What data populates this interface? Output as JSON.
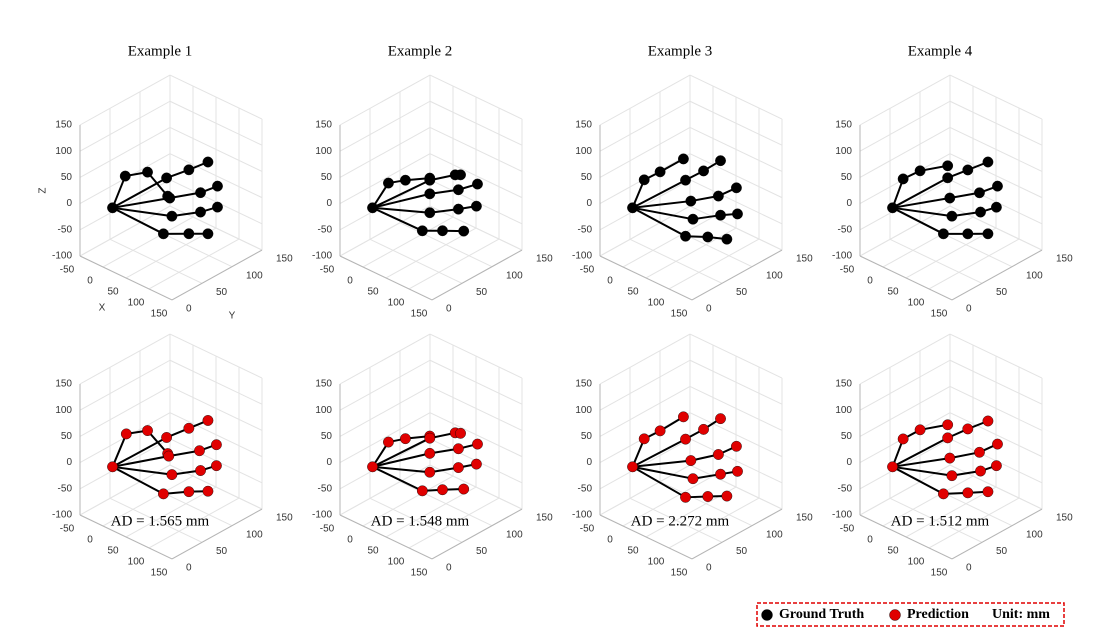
{
  "chart_data": [
    {
      "type": "scatter3d",
      "title": "Example 1",
      "xlabel": "X",
      "ylabel": "Y",
      "zlabel": "Z",
      "xlim": [
        -50,
        150
      ],
      "ylim": [
        0,
        150
      ],
      "zlim": [
        -100,
        150
      ],
      "xticks": [
        -50,
        0,
        50,
        100,
        150
      ],
      "yticks": [
        0,
        50,
        100,
        150
      ],
      "zticks": [
        -100,
        -50,
        0,
        50,
        100,
        150
      ],
      "series": [
        {
          "color": "#000000",
          "x": [
            9,
            21,
            42,
            61,
            60,
            81,
            99,
            63,
            92,
            108,
            65,
            92,
            108,
            57,
            81,
            99
          ],
          "y": [
            9,
            21,
            42,
            61,
            60,
            81,
            99,
            63,
            92,
            108,
            65,
            92,
            108,
            57,
            81,
            99
          ],
          "z": [
            11,
            69,
            72,
            22,
            57,
            68,
            79,
            18,
            22,
            31,
            -17,
            -15,
            -9,
            -49,
            -54,
            -58
          ]
        }
      ]
    },
    {
      "type": "scatter3d",
      "title": "Example 2",
      "xlim": [
        -50,
        150
      ],
      "ylim": [
        0,
        150
      ],
      "zlim": [
        -100,
        150
      ],
      "xticks": [
        -50,
        0,
        50,
        100,
        150
      ],
      "yticks": [
        0,
        50,
        100,
        150
      ],
      "zticks": [
        -100,
        -50,
        0,
        50,
        100,
        150
      ],
      "series": [
        {
          "color": "#000000",
          "x": [
            9,
            24,
            40,
            63,
            63,
            87,
            92,
            63,
            90,
            108,
            63,
            90,
            107,
            56,
            75,
            95
          ],
          "y": [
            9,
            24,
            40,
            63,
            63,
            87,
            92,
            63,
            90,
            108,
            63,
            90,
            107,
            56,
            75,
            95
          ],
          "z": [
            11,
            55,
            57,
            56,
            52,
            57,
            56,
            26,
            28,
            35,
            -10,
            -9,
            -7,
            -43,
            -47,
            -52
          ]
        }
      ]
    },
    {
      "type": "scatter3d",
      "title": "Example 3",
      "xlim": [
        -50,
        150
      ],
      "ylim": [
        0,
        150
      ],
      "zlim": [
        -100,
        150
      ],
      "xticks": [
        -50,
        0,
        50,
        100,
        150
      ],
      "yticks": [
        0,
        50,
        100,
        150
      ],
      "zticks": [
        -100,
        -50,
        0,
        50,
        100,
        150
      ],
      "series": [
        {
          "color": "#000000",
          "x": [
            9,
            20,
            35,
            57,
            59,
            76,
            92,
            64,
            90,
            107,
            66,
            92,
            108,
            59,
            80,
            98
          ],
          "y": [
            9,
            20,
            35,
            57,
            59,
            76,
            92,
            64,
            90,
            107,
            66,
            92,
            108,
            59,
            80,
            98
          ],
          "z": [
            11,
            62,
            74,
            94,
            53,
            67,
            83,
            12,
            16,
            28,
            -23,
            -21,
            -22,
            -54,
            -60,
            -68
          ]
        }
      ]
    },
    {
      "type": "scatter3d",
      "title": "Example 4",
      "xlim": [
        -50,
        150
      ],
      "ylim": [
        0,
        150
      ],
      "zlim": [
        -100,
        150
      ],
      "xticks": [
        -50,
        0,
        50,
        100,
        150
      ],
      "yticks": [
        0,
        50,
        100,
        150
      ],
      "zticks": [
        -100,
        -50,
        0,
        50,
        100,
        150
      ],
      "series": [
        {
          "color": "#000000",
          "x": [
            9,
            19,
            35,
            61,
            61,
            80,
            99,
            63,
            91,
            108,
            65,
            92,
            107,
            57,
            80,
            99
          ],
          "y": [
            9,
            19,
            35,
            61,
            61,
            80,
            99,
            63,
            91,
            108,
            65,
            92,
            107,
            57,
            80,
            99
          ],
          "z": [
            11,
            64,
            76,
            80,
            57,
            68,
            79,
            18,
            22,
            31,
            -17,
            -15,
            -9,
            -49,
            -54,
            -58
          ]
        }
      ]
    },
    {
      "type": "scatter3d",
      "annotation": "AD = 1.565 mm",
      "xlim": [
        -50,
        150
      ],
      "ylim": [
        0,
        150
      ],
      "zlim": [
        -100,
        150
      ],
      "xticks": [
        -50,
        0,
        50,
        100,
        150
      ],
      "yticks": [
        0,
        50,
        100,
        150
      ],
      "zticks": [
        -100,
        -50,
        0,
        50,
        100,
        150
      ],
      "series": [
        {
          "color": "#e00000",
          "x": [
            9,
            22,
            42,
            61,
            60,
            81,
            99,
            62,
            91,
            107,
            65,
            92,
            107,
            57,
            81,
            99
          ],
          "y": [
            9,
            22,
            42,
            61,
            60,
            81,
            99,
            62,
            91,
            107,
            65,
            92,
            107,
            57,
            81,
            99
          ],
          "z": [
            11,
            71,
            73,
            25,
            56,
            69,
            80,
            20,
            24,
            32,
            -16,
            -14,
            -8,
            -51,
            -52,
            -55
          ]
        }
      ]
    },
    {
      "type": "scatter3d",
      "annotation": "AD = 1.548 mm",
      "xlim": [
        -50,
        150
      ],
      "ylim": [
        0,
        150
      ],
      "zlim": [
        -100,
        150
      ],
      "xticks": [
        -50,
        0,
        50,
        100,
        150
      ],
      "yticks": [
        0,
        50,
        100,
        150
      ],
      "zticks": [
        -100,
        -50,
        0,
        50,
        100,
        150
      ],
      "series": [
        {
          "color": "#e00000",
          "x": [
            9,
            24,
            40,
            63,
            63,
            87,
            92,
            63,
            90,
            108,
            63,
            90,
            107,
            56,
            75,
            95
          ],
          "y": [
            9,
            24,
            40,
            63,
            63,
            87,
            92,
            63,
            90,
            108,
            63,
            90,
            107,
            56,
            75,
            95
          ],
          "z": [
            11,
            55,
            58,
            58,
            54,
            59,
            57,
            25,
            28,
            33,
            -11,
            -8,
            -5,
            -45,
            -47,
            -50
          ]
        }
      ]
    },
    {
      "type": "scatter3d",
      "annotation": "AD = 2.272 mm",
      "xlim": [
        -50,
        150
      ],
      "ylim": [
        0,
        150
      ],
      "zlim": [
        -100,
        150
      ],
      "xticks": [
        -50,
        0,
        50,
        100,
        150
      ],
      "yticks": [
        0,
        50,
        100,
        150
      ],
      "zticks": [
        -100,
        -50,
        0,
        50,
        100,
        150
      ],
      "series": [
        {
          "color": "#e00000",
          "x": [
            9,
            20,
            35,
            57,
            59,
            76,
            92,
            64,
            90,
            107,
            66,
            92,
            108,
            59,
            80,
            98
          ],
          "y": [
            9,
            20,
            35,
            57,
            59,
            76,
            92,
            64,
            90,
            107,
            66,
            92,
            108,
            59,
            80,
            98
          ],
          "z": [
            11,
            62,
            74,
            96,
            53,
            68,
            85,
            11,
            17,
            29,
            -24,
            -21,
            -19,
            -58,
            -61,
            -64
          ]
        }
      ]
    },
    {
      "type": "scatter3d",
      "annotation": "AD = 1.512 mm",
      "xlim": [
        -50,
        150
      ],
      "ylim": [
        0,
        150
      ],
      "zlim": [
        -100,
        150
      ],
      "xticks": [
        -50,
        0,
        50,
        100,
        150
      ],
      "yticks": [
        0,
        50,
        100,
        150
      ],
      "zticks": [
        -100,
        -50,
        0,
        50,
        100,
        150
      ],
      "series": [
        {
          "color": "#e00000",
          "x": [
            9,
            19,
            35,
            61,
            61,
            80,
            99,
            63,
            91,
            108,
            65,
            92,
            107,
            57,
            80,
            99
          ],
          "y": [
            9,
            19,
            35,
            61,
            61,
            80,
            99,
            63,
            91,
            108,
            65,
            92,
            107,
            57,
            80,
            99
          ],
          "z": [
            11,
            62,
            76,
            80,
            55,
            68,
            79,
            16,
            21,
            33,
            -18,
            -15,
            -8,
            -51,
            -54,
            -56
          ]
        }
      ]
    }
  ],
  "legend": {
    "items": [
      {
        "name": "Ground Truth",
        "color": "#000000"
      },
      {
        "name": "Prediction",
        "color": "#e00000"
      }
    ],
    "unit": "Unit: mm"
  }
}
